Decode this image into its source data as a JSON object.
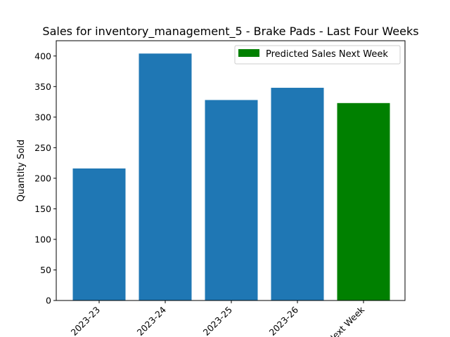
{
  "chart_data": {
    "type": "bar",
    "title": "Sales for inventory_management_5 - Brake Pads - Last Four Weeks",
    "xlabel": "",
    "ylabel": "Quantity Sold",
    "categories": [
      "2023-23",
      "2023-24",
      "2023-25",
      "2023-26",
      "Next Week"
    ],
    "series": [
      {
        "values": [
          216,
          404,
          328,
          348,
          null
        ],
        "color": "#1f77b4"
      },
      {
        "name": "Predicted Sales Next Week",
        "values": [
          null,
          null,
          null,
          null,
          323
        ],
        "color": "#008000"
      }
    ],
    "ylim": [
      0,
      425
    ],
    "yticks": [
      0,
      50,
      100,
      150,
      200,
      250,
      300,
      350,
      400
    ],
    "grid": false,
    "legend_position": "upper-right"
  }
}
